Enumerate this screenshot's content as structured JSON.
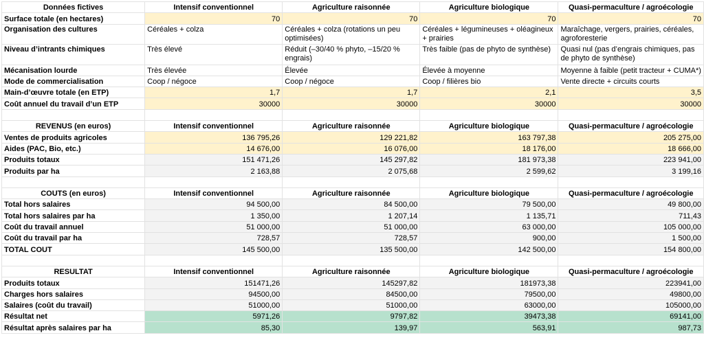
{
  "columns": [
    "Intensif conventionnel",
    "Agriculture raisonnée",
    "Agriculture biologique",
    "Quasi-permaculture / agroécologie"
  ],
  "colors": {
    "input": "#fff2cc",
    "computed": "#f3f3f3",
    "result": "#b7e1cd",
    "grid": "#e2e2e2"
  },
  "sections": [
    {
      "title": "Données fictives",
      "rows": [
        {
          "label": "Surface totale (en hectares)",
          "style": "yellow",
          "type": "num",
          "values": [
            "70",
            "70",
            "70",
            "70"
          ]
        },
        {
          "label": "Organisation des cultures",
          "style": "",
          "type": "text",
          "wrap": true,
          "values": [
            "Céréales + colza",
            "Céréales + colza (rotations un peu optimisées)",
            "Céréales + légumineuses + oléagineux + prairies",
            "Maraîchage, vergers, prairies, céréales, agroforesterie"
          ]
        },
        {
          "label": "Niveau d’intrants chimiques",
          "style": "",
          "type": "text",
          "wrap": true,
          "values": [
            "Très élevé",
            "Réduit (–30/40 % phyto, –15/20 % engrais)",
            "Très faible (pas de phyto de synthèse)",
            "Quasi nul (pas d’engrais chimiques, pas de phyto de synthèse)"
          ]
        },
        {
          "label": "Mécanisation lourde",
          "style": "",
          "type": "text",
          "values": [
            "Très élevée",
            "Élevée",
            "Élevée à moyenne",
            "Moyenne à faible (petit tracteur + CUMA*)"
          ]
        },
        {
          "label": "Mode de commercialisation",
          "style": "",
          "type": "text",
          "values": [
            "Coop / négoce",
            "Coop / négoce",
            "Coop / filières bio",
            "Vente directe + circuits courts"
          ]
        },
        {
          "label": "Main-d’œuvre totale (en ETP)",
          "style": "yellow",
          "type": "num",
          "values": [
            "1,7",
            "1,7",
            "2,1",
            "3,5"
          ]
        },
        {
          "label": "Coût annuel du travail d’un ETP",
          "style": "yellow",
          "type": "num",
          "values": [
            "30000",
            "30000",
            "30000",
            "30000"
          ]
        }
      ]
    },
    {
      "title": "REVENUS (en euros)",
      "rows": [
        {
          "label": "Ventes de produits agricoles",
          "style": "yellow",
          "type": "num",
          "values": [
            "136 795,26",
            "129 221,82",
            "163 797,38",
            "205 275,00"
          ]
        },
        {
          "label": "Aides (PAC, Bio, etc.)",
          "style": "yellow",
          "type": "num",
          "values": [
            "14 676,00",
            "16 076,00",
            "18 176,00",
            "18 666,00"
          ]
        },
        {
          "label": "Produits totaux",
          "style": "grey",
          "type": "num",
          "values": [
            "151 471,26",
            "145 297,82",
            "181 973,38",
            "223 941,00"
          ]
        },
        {
          "label": "Produits par ha",
          "style": "grey",
          "type": "num",
          "values": [
            "2 163,88",
            "2 075,68",
            "2 599,62",
            "3 199,16"
          ]
        }
      ]
    },
    {
      "title": "COUTS (en euros)",
      "rows": [
        {
          "label": "Total hors salaires",
          "style": "grey",
          "type": "num",
          "values": [
            "94 500,00",
            "84 500,00",
            "79 500,00",
            "49 800,00"
          ]
        },
        {
          "label": "Total hors salaires par ha",
          "style": "grey",
          "type": "num",
          "values": [
            "1 350,00",
            "1 207,14",
            "1 135,71",
            "711,43"
          ]
        },
        {
          "label": "Coût du travail annuel",
          "style": "grey",
          "type": "num",
          "values": [
            "51 000,00",
            "51 000,00",
            "63 000,00",
            "105 000,00"
          ]
        },
        {
          "label": "Coût du travail par ha",
          "style": "grey",
          "type": "num",
          "values": [
            "728,57",
            "728,57",
            "900,00",
            "1 500,00"
          ]
        },
        {
          "label": "TOTAL COUT",
          "style": "grey",
          "type": "num",
          "values": [
            "145 500,00",
            "135 500,00",
            "142 500,00",
            "154 800,00"
          ]
        }
      ]
    },
    {
      "title": "RESULTAT",
      "rows": [
        {
          "label": "Produits totaux",
          "style": "grey",
          "type": "num",
          "values": [
            "151471,26",
            "145297,82",
            "181973,38",
            "223941,00"
          ]
        },
        {
          "label": "Charges hors salaires",
          "style": "grey",
          "type": "num",
          "values": [
            "94500,00",
            "84500,00",
            "79500,00",
            "49800,00"
          ]
        },
        {
          "label": "Salaires (coût du travail)",
          "style": "grey",
          "type": "num",
          "values": [
            "51000,00",
            "51000,00",
            "63000,00",
            "105000,00"
          ]
        },
        {
          "label": "Résultat net",
          "style": "green",
          "type": "num",
          "values": [
            "5971,26",
            "9797,82",
            "39473,38",
            "69141,00"
          ]
        },
        {
          "label": "Résultat après salaires par ha",
          "style": "green",
          "type": "num",
          "values": [
            "85,30",
            "139,97",
            "563,91",
            "987,73"
          ]
        }
      ]
    }
  ]
}
